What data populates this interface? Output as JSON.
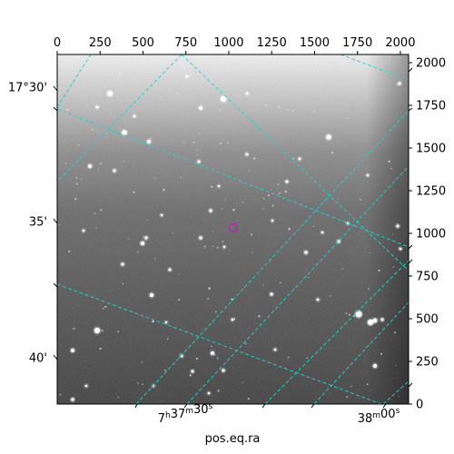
{
  "plot": {
    "x_axis_label": "pos.eq.ra",
    "top_pixel_ticks": [
      "0",
      "250",
      "500",
      "750",
      "1000",
      "1250",
      "1500",
      "1750",
      "2000"
    ],
    "right_pixel_ticks": [
      "0",
      "250",
      "500",
      "750",
      "1000",
      "1250",
      "1500",
      "1750",
      "2000"
    ],
    "dec_ticks": [
      {
        "label": "17°30'"
      },
      {
        "label": "35'"
      },
      {
        "label": "40'"
      }
    ],
    "ra_ticks": [
      {
        "main": "7",
        "h_sup": "h",
        "mid": "37",
        "m_sup": "m",
        "tail": "30",
        "s_sup": "s"
      },
      {
        "main": "38",
        "m_sup": "m",
        "tail": "00",
        "s_sup": "s"
      }
    ],
    "grid_color": "#22d3cf",
    "marker_color": "#c020c0",
    "pixel_range": [
      0,
      2048
    ]
  }
}
